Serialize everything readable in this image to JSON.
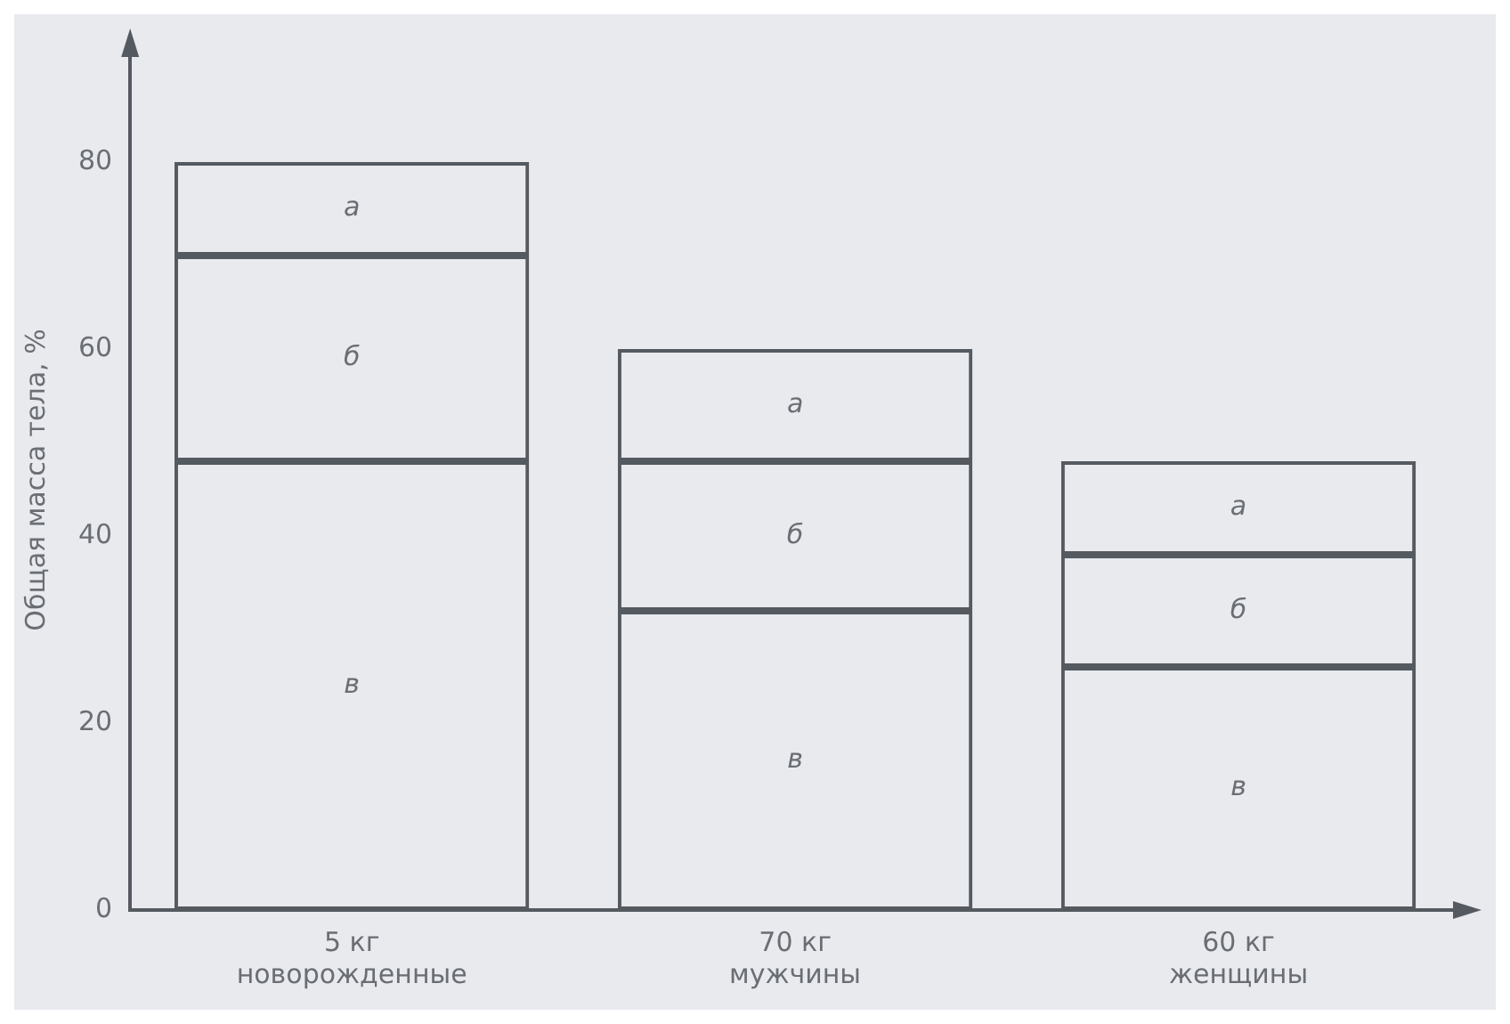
{
  "chart_data": {
    "type": "bar",
    "stacked": true,
    "ylabel": "Общая масса тела, %",
    "categories": [
      "5 кг\nноворожденные",
      "70 кг\nмужчины",
      "60 кг\nженщины"
    ],
    "series": [
      {
        "name": "в",
        "color": "#555a60",
        "values": [
          48,
          32,
          26
        ]
      },
      {
        "name": "б",
        "color": "#555a60",
        "values": [
          22,
          16,
          12
        ]
      },
      {
        "name": "а",
        "color": "#555a60",
        "values": [
          10,
          12,
          10
        ]
      }
    ],
    "ylim": [
      0,
      92
    ],
    "yticks": [
      0,
      20,
      40,
      60,
      80
    ],
    "grid": false,
    "legend": false
  }
}
